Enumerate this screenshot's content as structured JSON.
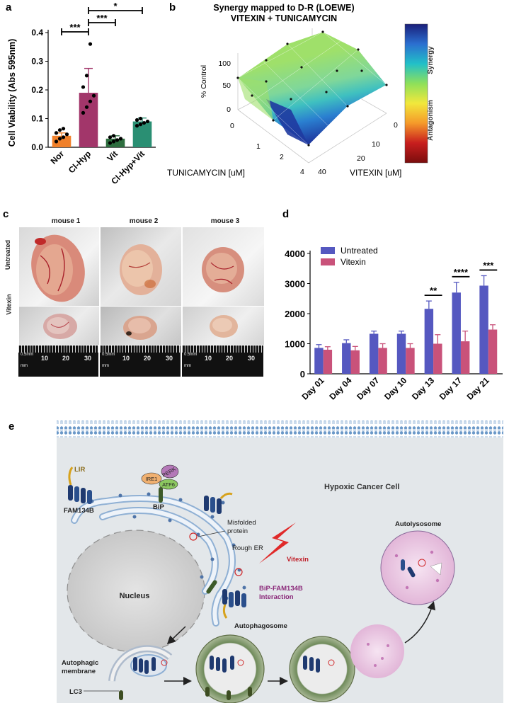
{
  "panels": {
    "a": {
      "letter": "a"
    },
    "b": {
      "letter": "b"
    },
    "c": {
      "letter": "c"
    },
    "d": {
      "letter": "d"
    },
    "e": {
      "letter": "e"
    }
  },
  "chart_data": [
    {
      "id": "a",
      "type": "bar",
      "categories": [
        "Nor",
        "Cl-Hyp",
        "Vit",
        "Cl-Hyp+Vit"
      ],
      "values": [
        0.04,
        0.19,
        0.03,
        0.09
      ],
      "errors": [
        0.01,
        0.085,
        0.01,
        0.012
      ],
      "points": [
        [
          0.02,
          0.03,
          0.035,
          0.045,
          0.05,
          0.06,
          0.065
        ],
        [
          0.12,
          0.14,
          0.16,
          0.18,
          0.21,
          0.25,
          0.36
        ],
        [
          0.015,
          0.02,
          0.025,
          0.03,
          0.035,
          0.04
        ],
        [
          0.075,
          0.08,
          0.085,
          0.09,
          0.095,
          0.1
        ]
      ],
      "colors": [
        "#f0802a",
        "#a2366a",
        "#2e6e3f",
        "#2a8f73"
      ],
      "title": "",
      "xlabel": "",
      "ylabel": "Cell Viability (Abs 595nm)",
      "ylim": [
        0,
        0.4
      ],
      "yticks": [
        "0.0",
        "0.1",
        "0.2",
        "0.3",
        "0.4"
      ],
      "significance": [
        {
          "from": "Nor",
          "to": "Cl-Hyp",
          "label": "***"
        },
        {
          "from": "Cl-Hyp",
          "to": "Vit",
          "label": "***"
        },
        {
          "from": "Cl-Hyp",
          "to": "Cl-Hyp+Vit",
          "label": "*"
        }
      ]
    },
    {
      "id": "b",
      "type": "surface",
      "title": "Synergy mapped to D-R (LOEWE)",
      "subtitle": "VITEXIN + TUNICAMYCIN",
      "zlabel": "% Control",
      "zticks": [
        "0",
        "50",
        "100"
      ],
      "xlabel": "TUNICAMYCIN [uM]",
      "xticks": [
        "0",
        "1",
        "2",
        "4"
      ],
      "ylabel": "VITEXIN [uM]",
      "yticks": [
        "0",
        "10",
        "20",
        "40"
      ],
      "colorbar_labels": [
        "Synergy",
        "Antagonism"
      ],
      "colorbar_colors": [
        "#1a1f7a",
        "#2b6fd0",
        "#22c0c8",
        "#8ee05a",
        "#f2e83c",
        "#f59a2a",
        "#c81e1e",
        "#7a0d0d"
      ]
    },
    {
      "id": "d",
      "type": "bar",
      "categories": [
        "Day 01",
        "Day 04",
        "Day 07",
        "Day 10",
        "Day 13",
        "Day 17",
        "Day 21"
      ],
      "series": [
        {
          "name": "Untreated",
          "color": "#5558c0",
          "values": [
            860,
            1020,
            1330,
            1330,
            2160,
            2700,
            2930
          ],
          "errors": [
            110,
            110,
            90,
            90,
            260,
            340,
            330
          ]
        },
        {
          "name": "Vitexin",
          "color": "#c9527a",
          "values": [
            800,
            780,
            860,
            860,
            1000,
            1080,
            1470
          ],
          "errors": [
            100,
            130,
            140,
            140,
            300,
            340,
            160
          ]
        }
      ],
      "ylim": [
        0,
        4000
      ],
      "yticks": [
        "0",
        "1000",
        "2000",
        "3000",
        "4000"
      ],
      "significance": [
        {
          "category": "Day 13",
          "label": "**"
        },
        {
          "category": "Day 17",
          "label": "****"
        },
        {
          "category": "Day 21",
          "label": "***"
        }
      ]
    }
  ],
  "panel_c": {
    "mice": [
      "mouse 1",
      "mouse 2",
      "mouse 3"
    ],
    "rows": [
      "Untreated",
      "Vitexin"
    ],
    "ruler_unit": "0.5mm",
    "ruler_unit2": "mm",
    "ruler_numbers": [
      "10",
      "20",
      "30"
    ]
  },
  "panel_e": {
    "cell_label": "Hypoxic Cancer Cell",
    "labels": {
      "lir": "LIR",
      "fam134b": "FAM134B",
      "ire1": "IRE1",
      "perk": "PERK",
      "atf6": "ATF6",
      "bip": "BiP",
      "misfolded": "Misfolded protein",
      "misfolded_line1": "Misfolded",
      "misfolded_line2": "protein",
      "rough_er": "Rough ER",
      "vitexin": "Vitexin",
      "nucleus": "Nucleus",
      "interaction_line1": "BiP-FAM134B",
      "interaction_line2": "Interaction",
      "autophagic_line1": "Autophagic",
      "autophagic_line2": "membrane",
      "lc3": "LC3",
      "autophagosome": "Autophagosome",
      "autolysosome": "Autolysosome"
    }
  }
}
